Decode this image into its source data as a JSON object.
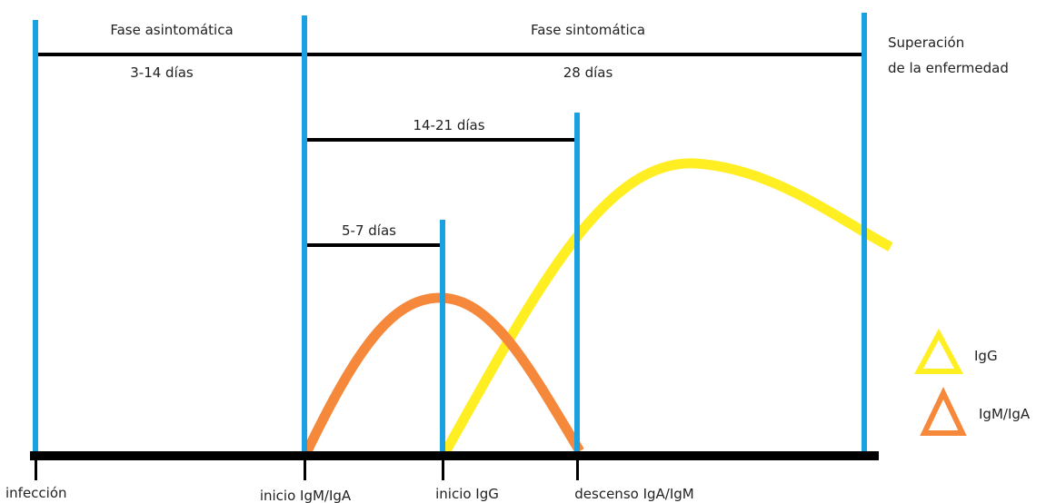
{
  "phases": {
    "asymptomatic": {
      "title": "Fase asintomática",
      "duration": "3-14 días"
    },
    "symptomatic": {
      "title": "Fase sintomática",
      "duration": "28 días"
    },
    "recovery": {
      "line1": "Superación",
      "line2": "de la enfermedad"
    }
  },
  "intervals": {
    "igg_start": "5-7 días",
    "igm_decline": "14-21 días"
  },
  "events": {
    "infection": "infección",
    "igm_iga_start": "inicio IgM/IgA",
    "igg_start": "inicio IgG",
    "decline": "descenso IgA/IgM"
  },
  "legend": {
    "igg": {
      "label": "IgG",
      "color": "#ffee22",
      "icon": "triangle-icon"
    },
    "igm_iga": {
      "label": "IgM/IgA",
      "color": "#f5883a",
      "icon": "triangle-icon"
    }
  },
  "colors": {
    "marker": "#1ba1e2",
    "axis": "#000000"
  }
}
